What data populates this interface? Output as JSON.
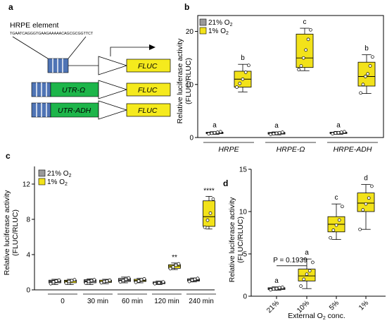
{
  "panel_labels": {
    "a": "a",
    "b": "b",
    "c": "c",
    "d": "d"
  },
  "colors": {
    "normoxia": "#9a9a9a",
    "hypoxia": "#f2e21a",
    "hrpe_blue": "#4f74b5",
    "utr_green": "#1db54a",
    "fluc_yellow": "#f5ea1d"
  },
  "schematic": {
    "title": "HRPE element",
    "sequence": "TGAATCAGGGTGAAGAAAAACAGCGCGGTTCT",
    "constructs": [
      {
        "utr": "",
        "gene": "FLUC"
      },
      {
        "utr": "UTR-Ω",
        "gene": "FLUC"
      },
      {
        "utr": "UTR-ADH",
        "gene": "FLUC"
      }
    ]
  },
  "chart_data": [
    {
      "panel": "b",
      "type": "box",
      "ylabel_line1": "Relative luciferase activity",
      "ylabel_line2": "(FLUC/RLUC)",
      "ylim": [
        0,
        23
      ],
      "yticks": [
        0,
        10,
        20
      ],
      "categories": [
        "HRPE",
        "HRPE-Ω",
        "HRPE-ADH"
      ],
      "legend": [
        {
          "name": "21% O",
          "sub": "2",
          "color": "#9a9a9a"
        },
        {
          "name": "1% O",
          "sub": "2",
          "color": "#f2e21a"
        }
      ],
      "series": [
        {
          "name": "21% O2",
          "boxes": [
            {
              "min": 0.6,
              "q1": 0.75,
              "median": 0.85,
              "q3": 1.0,
              "max": 1.1,
              "points": [
                0.7,
                0.8,
                0.9,
                1.0,
                1.1
              ],
              "label": "a"
            },
            {
              "min": 0.5,
              "q1": 0.65,
              "median": 0.8,
              "q3": 0.95,
              "max": 1.05,
              "points": [
                0.6,
                0.7,
                0.8,
                0.9,
                1.0
              ],
              "label": "a"
            },
            {
              "min": 0.6,
              "q1": 0.75,
              "median": 0.9,
              "q3": 1.0,
              "max": 1.15,
              "points": [
                0.7,
                0.85,
                0.9,
                1.0,
                1.1
              ],
              "label": "a"
            }
          ]
        },
        {
          "name": "1% O2",
          "boxes": [
            {
              "min": 8.6,
              "q1": 9.5,
              "median": 11.0,
              "q3": 12.5,
              "max": 13.8,
              "points": [
                9.5,
                10.2,
                11.0,
                12.3,
                13.6
              ],
              "label": "b"
            },
            {
              "min": 12.6,
              "q1": 13.2,
              "median": 15.0,
              "q3": 19.5,
              "max": 20.6,
              "points": [
                12.8,
                13.5,
                15.0,
                16.5,
                18.5,
                20.3
              ],
              "label": "c"
            },
            {
              "min": 8.3,
              "q1": 9.7,
              "median": 11.5,
              "q3": 14.2,
              "max": 15.6,
              "points": [
                8.4,
                10.0,
                11.5,
                12.0,
                13.5,
                15.2
              ],
              "label": "b"
            }
          ]
        }
      ]
    },
    {
      "panel": "c",
      "type": "box",
      "ylabel_line1": "Relative luciferase activity",
      "ylabel_line2": "(FLUC/RLUC)",
      "ylim": [
        0,
        14
      ],
      "yticks": [
        0,
        4,
        8,
        12
      ],
      "categories": [
        "0",
        "30 min",
        "60 min",
        "120 min",
        "240 min"
      ],
      "legend": [
        {
          "name": "21% O",
          "sub": "2",
          "color": "#9a9a9a"
        },
        {
          "name": "1% O",
          "sub": "2",
          "color": "#f2e21a"
        }
      ],
      "series": [
        {
          "name": "21% O2",
          "boxes": [
            {
              "min": 0.6,
              "q1": 0.8,
              "median": 0.95,
              "q3": 1.1,
              "max": 1.2,
              "points": [
                0.7,
                0.9,
                1.0,
                1.1
              ]
            },
            {
              "min": 0.6,
              "q1": 0.8,
              "median": 1.0,
              "q3": 1.15,
              "max": 1.25,
              "points": [
                0.75,
                0.95,
                1.05,
                1.15
              ]
            },
            {
              "min": 0.8,
              "q1": 0.95,
              "median": 1.1,
              "q3": 1.3,
              "max": 1.45,
              "points": [
                0.9,
                1.05,
                1.2,
                1.35
              ]
            },
            {
              "min": 0.6,
              "q1": 0.7,
              "median": 0.8,
              "q3": 0.9,
              "max": 1.0,
              "points": [
                0.7,
                0.8,
                0.9
              ]
            },
            {
              "min": 0.9,
              "q1": 1.0,
              "median": 1.1,
              "q3": 1.25,
              "max": 1.35,
              "points": [
                0.95,
                1.1,
                1.2,
                1.3
              ]
            }
          ]
        },
        {
          "name": "1% O2",
          "boxes": [
            {
              "min": 0.6,
              "q1": 0.8,
              "median": 1.0,
              "q3": 1.1,
              "max": 1.2,
              "points": [
                0.75,
                0.95,
                1.05,
                1.15
              ]
            },
            {
              "min": 0.7,
              "q1": 0.85,
              "median": 0.95,
              "q3": 1.1,
              "max": 1.2,
              "points": [
                0.8,
                0.95,
                1.0,
                1.1
              ]
            },
            {
              "min": 0.8,
              "q1": 0.95,
              "median": 1.05,
              "q3": 1.2,
              "max": 1.3,
              "points": [
                0.85,
                1.0,
                1.15,
                1.25
              ]
            },
            {
              "min": 2.3,
              "q1": 2.45,
              "median": 2.7,
              "q3": 2.85,
              "max": 3.05,
              "points": [
                2.4,
                2.6,
                2.8,
                2.95
              ],
              "label": "**"
            },
            {
              "min": 6.9,
              "q1": 7.2,
              "median": 8.3,
              "q3": 10.1,
              "max": 10.6,
              "points": [
                7.1,
                7.9,
                8.7,
                10.3
              ],
              "label": "****"
            }
          ]
        }
      ]
    },
    {
      "panel": "d",
      "type": "box",
      "ylabel_line1": "Relative luciferase activity",
      "ylabel_line2": "(FLUC/RLUC)",
      "xlabel": "External O",
      "xlabel_sub": "2",
      "xlabel_suffix": " conc.",
      "ylim": [
        0,
        15
      ],
      "yticks": [
        0,
        5,
        10,
        15
      ],
      "categories": [
        "21%",
        "10%",
        "5%",
        "1%"
      ],
      "boxes": [
        {
          "min": 0.7,
          "q1": 0.8,
          "median": 0.9,
          "q3": 1.0,
          "max": 1.1,
          "points": [
            0.75,
            0.85,
            0.9,
            1.0,
            1.05
          ],
          "label": "a",
          "color": "#9a9a9a"
        },
        {
          "min": 0.9,
          "q1": 1.8,
          "median": 2.4,
          "q3": 3.2,
          "max": 4.4,
          "points": [
            1.2,
            2.0,
            2.6,
            3.0,
            4.0
          ],
          "label": "a",
          "color": "#f2e21a"
        },
        {
          "min": 6.7,
          "q1": 7.6,
          "median": 8.5,
          "q3": 9.4,
          "max": 10.9,
          "points": [
            6.9,
            7.8,
            8.4,
            9.0,
            10.6
          ],
          "label": "c",
          "color": "#f2e21a"
        },
        {
          "min": 7.9,
          "q1": 10.0,
          "median": 11.0,
          "q3": 12.2,
          "max": 13.2,
          "points": [
            7.9,
            10.2,
            10.9,
            11.6,
            13.0
          ],
          "label": "d",
          "color": "#f2e21a"
        }
      ],
      "annotation": "P = 0.1939"
    }
  ]
}
